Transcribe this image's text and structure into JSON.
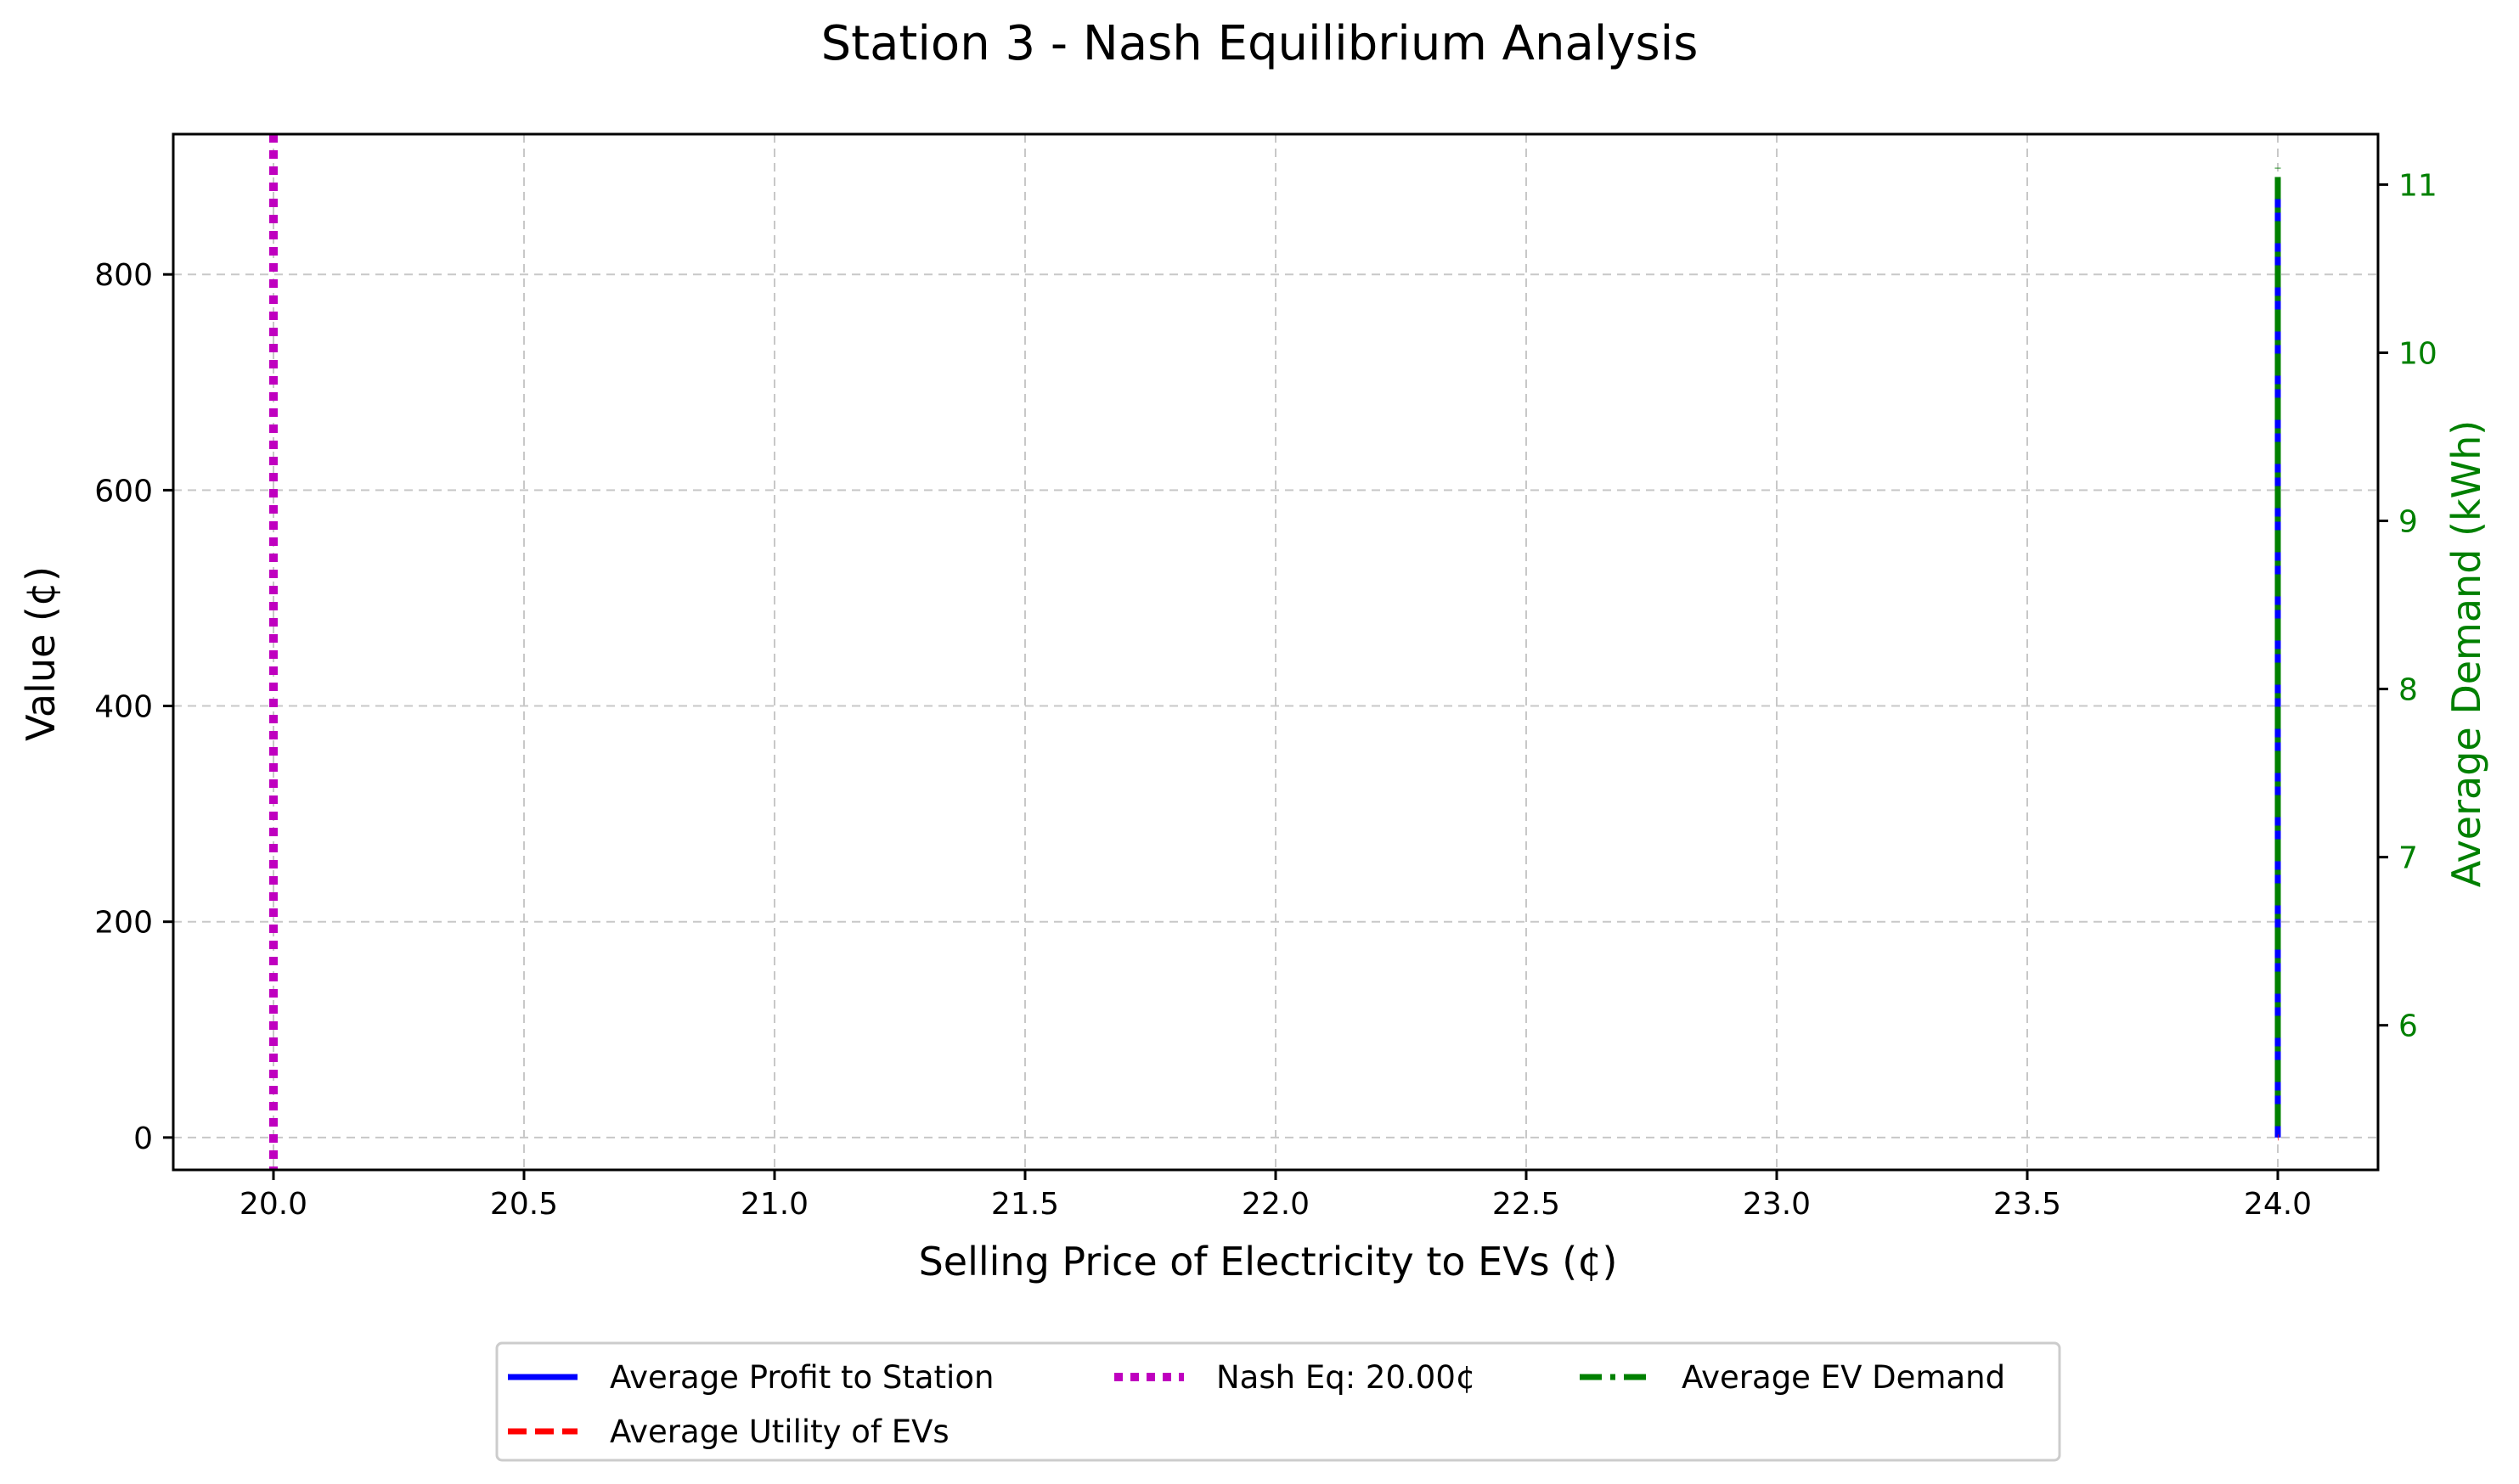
{
  "chart_data": {
    "type": "line",
    "title": "Station 3 - Nash Equilibrium Analysis",
    "xlabel": "Selling Price of Electricity to EVs (¢)",
    "ylabel": "Value (¢)",
    "y2label": "Average Demand (kWh)",
    "xlim": [
      19.8,
      24.2
    ],
    "ylim": [
      -30,
      930
    ],
    "y2lim": [
      5.14,
      11.3
    ],
    "xticks": [
      20.0,
      20.5,
      21.0,
      21.5,
      22.0,
      22.5,
      23.0,
      23.5,
      24.0
    ],
    "xtick_labels": [
      "20.0",
      "20.5",
      "21.0",
      "21.5",
      "22.0",
      "22.5",
      "23.0",
      "23.5",
      "24.0"
    ],
    "yticks": [
      0,
      200,
      400,
      600,
      800
    ],
    "ytick_labels": [
      "0",
      "200",
      "400",
      "600",
      "800"
    ],
    "y2ticks": [
      6,
      7,
      8,
      9,
      10,
      11
    ],
    "y2tick_labels": [
      "6",
      "7",
      "8",
      "9",
      "10",
      "11"
    ],
    "grid": true,
    "legend_position": "bottom-center",
    "series": [
      {
        "name": "Average Profit to Station",
        "axis": "left",
        "color": "#0000ff",
        "style": "solid",
        "x": [
          24.0,
          24.0
        ],
        "y": [
          0,
          890
        ]
      },
      {
        "name": "Average Utility of EVs",
        "axis": "left",
        "color": "#ff0000",
        "style": "dashed",
        "x": [
          24.0,
          24.0
        ],
        "y": [
          0,
          0
        ]
      },
      {
        "name": "Average EV Demand",
        "axis": "right",
        "color": "#008000",
        "style": "dashdot",
        "x": [
          24.0,
          24.0
        ],
        "y": [
          5.4,
          11.1
        ]
      }
    ],
    "vline": {
      "name": "Nash Eq: 20.00¢",
      "x": 20.0,
      "color": "#bf00bf",
      "style": "dotted"
    },
    "legend": [
      {
        "label": "Average Profit to Station",
        "color": "#0000ff",
        "style": "solid"
      },
      {
        "label": "Average Utility of EVs",
        "color": "#ff0000",
        "style": "dashed"
      },
      {
        "label": "Nash Eq: 20.00¢",
        "color": "#bf00bf",
        "style": "dotted"
      },
      {
        "label": "Average EV Demand",
        "color": "#008000",
        "style": "dashdot"
      }
    ]
  }
}
